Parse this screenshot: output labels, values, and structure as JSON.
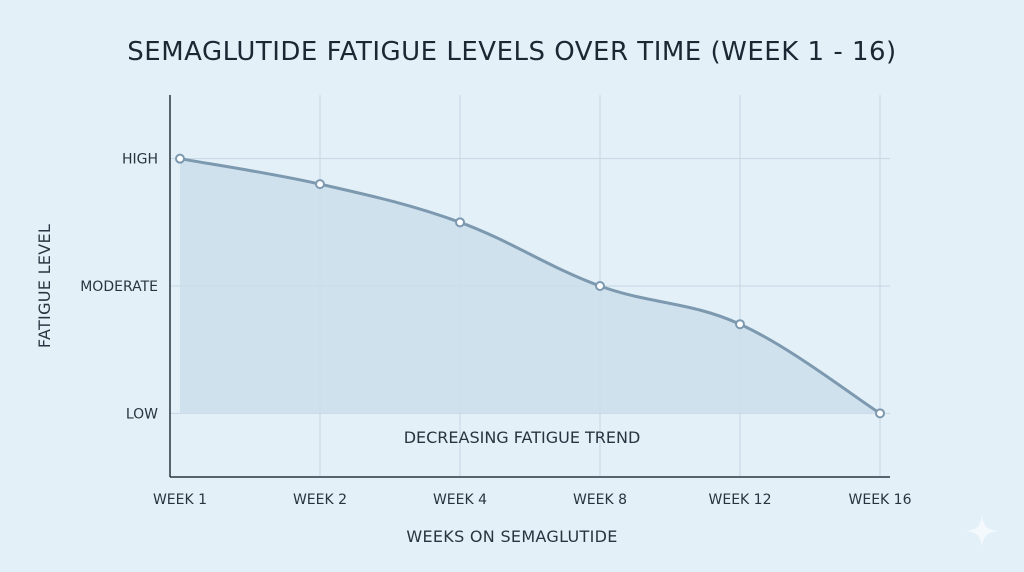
{
  "chart_data": {
    "type": "line",
    "title": "SEMAGLUTIDE FATIGUE LEVELS OVER TIME (WEEK 1 - 16)",
    "xlabel": "WEEKS ON SEMAGLUTIDE",
    "ylabel": "FATIGUE LEVEL",
    "categories": [
      "WEEK 1",
      "WEEK 2",
      "WEEK 4",
      "WEEK 8",
      "WEEK 12",
      "WEEK 16"
    ],
    "y_ticks": [
      {
        "label": "LOW",
        "value": 0
      },
      {
        "label": "MODERATE",
        "value": 1
      },
      {
        "label": "HIGH",
        "value": 2
      }
    ],
    "ylim": [
      -0.5,
      2.5
    ],
    "series": [
      {
        "values": [
          2.0,
          1.8,
          1.5,
          1.0,
          0.7,
          0.0
        ]
      }
    ],
    "annotation": "DECREASING FATIGUE TREND",
    "grid": true,
    "area_fill": true,
    "colors": {
      "line": "#7d99b0",
      "area": "#cddeec",
      "marker_fill": "#ffffff",
      "grid": "#c6d6e2",
      "axis": "#2a3440",
      "background": "#e3f0f8"
    }
  }
}
